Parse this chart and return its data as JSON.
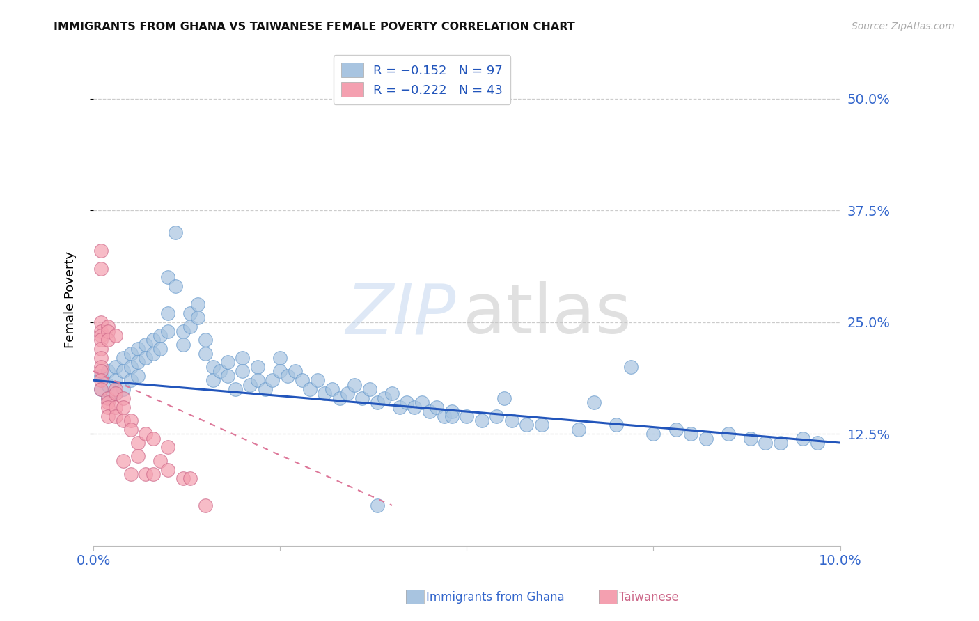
{
  "title": "IMMIGRANTS FROM GHANA VS TAIWANESE FEMALE POVERTY CORRELATION CHART",
  "source": "Source: ZipAtlas.com",
  "ylabel": "Female Poverty",
  "xlim": [
    0.0,
    0.1
  ],
  "ylim": [
    0.0,
    0.55
  ],
  "ghana_color": "#a8c4e0",
  "ghana_edge_color": "#6699cc",
  "taiwanese_color": "#f4a0b0",
  "taiwanese_edge_color": "#cc6688",
  "ghana_line_color": "#2255bb",
  "taiwanese_line_color": "#dd7799",
  "legend_r_ghana": "R = −0.152",
  "legend_n_ghana": "N = 97",
  "legend_r_taiwanese": "R = −0.222",
  "legend_n_taiwanese": "N = 43",
  "ghana_line_x": [
    0.0,
    0.1
  ],
  "ghana_line_y": [
    0.185,
    0.115
  ],
  "taiwanese_line_x": [
    0.0,
    0.04
  ],
  "taiwanese_line_y": [
    0.195,
    0.045
  ],
  "ghana_x": [
    0.001,
    0.001,
    0.002,
    0.002,
    0.002,
    0.003,
    0.003,
    0.003,
    0.004,
    0.004,
    0.004,
    0.005,
    0.005,
    0.005,
    0.006,
    0.006,
    0.006,
    0.007,
    0.007,
    0.008,
    0.008,
    0.009,
    0.009,
    0.01,
    0.01,
    0.01,
    0.011,
    0.011,
    0.012,
    0.012,
    0.013,
    0.013,
    0.014,
    0.014,
    0.015,
    0.015,
    0.016,
    0.016,
    0.017,
    0.018,
    0.018,
    0.019,
    0.02,
    0.02,
    0.021,
    0.022,
    0.022,
    0.023,
    0.024,
    0.025,
    0.025,
    0.026,
    0.027,
    0.028,
    0.029,
    0.03,
    0.031,
    0.032,
    0.033,
    0.034,
    0.035,
    0.036,
    0.037,
    0.038,
    0.039,
    0.04,
    0.041,
    0.042,
    0.043,
    0.044,
    0.045,
    0.046,
    0.047,
    0.048,
    0.05,
    0.052,
    0.054,
    0.056,
    0.058,
    0.06,
    0.065,
    0.07,
    0.072,
    0.075,
    0.078,
    0.08,
    0.082,
    0.085,
    0.088,
    0.09,
    0.092,
    0.095,
    0.097,
    0.067,
    0.055,
    0.048,
    0.038
  ],
  "ghana_y": [
    0.19,
    0.175,
    0.195,
    0.18,
    0.165,
    0.2,
    0.185,
    0.17,
    0.21,
    0.195,
    0.175,
    0.215,
    0.2,
    0.185,
    0.22,
    0.205,
    0.19,
    0.225,
    0.21,
    0.23,
    0.215,
    0.235,
    0.22,
    0.3,
    0.26,
    0.24,
    0.35,
    0.29,
    0.24,
    0.225,
    0.26,
    0.245,
    0.27,
    0.255,
    0.23,
    0.215,
    0.2,
    0.185,
    0.195,
    0.205,
    0.19,
    0.175,
    0.21,
    0.195,
    0.18,
    0.2,
    0.185,
    0.175,
    0.185,
    0.21,
    0.195,
    0.19,
    0.195,
    0.185,
    0.175,
    0.185,
    0.17,
    0.175,
    0.165,
    0.17,
    0.18,
    0.165,
    0.175,
    0.16,
    0.165,
    0.17,
    0.155,
    0.16,
    0.155,
    0.16,
    0.15,
    0.155,
    0.145,
    0.15,
    0.145,
    0.14,
    0.145,
    0.14,
    0.135,
    0.135,
    0.13,
    0.135,
    0.2,
    0.125,
    0.13,
    0.125,
    0.12,
    0.125,
    0.12,
    0.115,
    0.115,
    0.12,
    0.115,
    0.16,
    0.165,
    0.145,
    0.045
  ],
  "taiwanese_x": [
    0.001,
    0.001,
    0.001,
    0.001,
    0.001,
    0.001,
    0.001,
    0.001,
    0.001,
    0.001,
    0.001,
    0.001,
    0.002,
    0.002,
    0.002,
    0.002,
    0.002,
    0.002,
    0.002,
    0.003,
    0.003,
    0.003,
    0.003,
    0.003,
    0.004,
    0.004,
    0.004,
    0.004,
    0.005,
    0.005,
    0.005,
    0.006,
    0.006,
    0.007,
    0.007,
    0.008,
    0.008,
    0.009,
    0.01,
    0.01,
    0.012,
    0.013,
    0.015
  ],
  "taiwanese_y": [
    0.33,
    0.31,
    0.25,
    0.24,
    0.235,
    0.23,
    0.22,
    0.21,
    0.2,
    0.195,
    0.185,
    0.175,
    0.245,
    0.24,
    0.23,
    0.165,
    0.16,
    0.155,
    0.145,
    0.235,
    0.175,
    0.17,
    0.155,
    0.145,
    0.165,
    0.155,
    0.14,
    0.095,
    0.14,
    0.13,
    0.08,
    0.115,
    0.1,
    0.125,
    0.08,
    0.12,
    0.08,
    0.095,
    0.11,
    0.085,
    0.075,
    0.075,
    0.045
  ]
}
